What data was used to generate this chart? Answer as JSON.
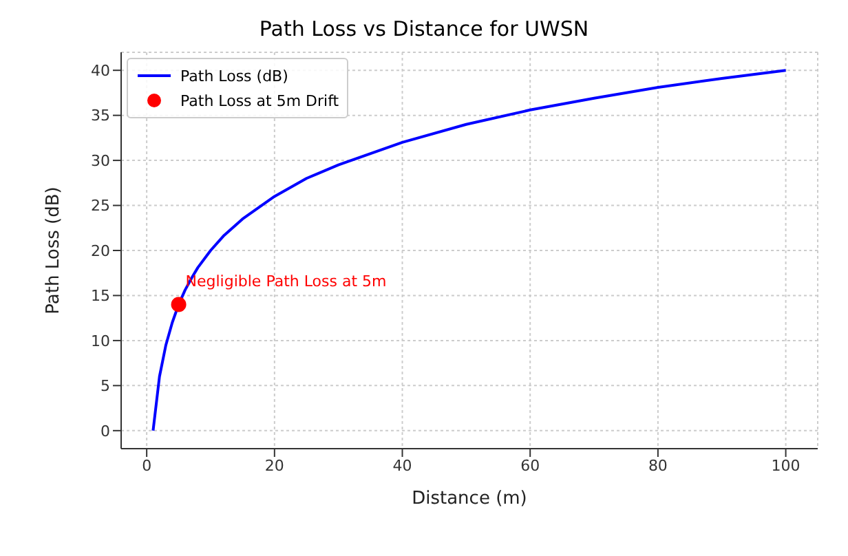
{
  "chart_data": {
    "type": "line",
    "title": "Path Loss vs Distance for UWSN",
    "xlabel": "Distance (m)",
    "ylabel": "Path Loss (dB)",
    "series": [
      {
        "name": "Path Loss (dB)",
        "color": "#0000ff",
        "x": [
          1,
          2,
          3,
          4,
          5,
          6,
          7,
          8,
          10,
          12,
          15,
          20,
          25,
          30,
          40,
          50,
          60,
          70,
          80,
          90,
          100
        ],
        "values": [
          0,
          6.0,
          9.5,
          12.0,
          14.0,
          15.6,
          16.9,
          18.1,
          20.0,
          21.6,
          23.5,
          26.0,
          28.0,
          29.5,
          32.0,
          34.0,
          35.6,
          36.9,
          38.1,
          39.1,
          40.0
        ]
      },
      {
        "name": "Path Loss at 5m Drift",
        "type": "scatter",
        "color": "#ff0000",
        "x": [
          5
        ],
        "values": [
          14.0
        ]
      }
    ],
    "annotations": [
      {
        "text": "Negligible Path Loss at 5m",
        "x": 5,
        "y": 16
      }
    ],
    "xlim": [
      -4,
      105
    ],
    "xticks": [
      0,
      20,
      40,
      60,
      80,
      100
    ],
    "ylim": [
      -2,
      42
    ],
    "yticks": [
      0,
      5,
      10,
      15,
      20,
      25,
      30,
      35,
      40
    ],
    "grid": true,
    "legend": "top left"
  }
}
